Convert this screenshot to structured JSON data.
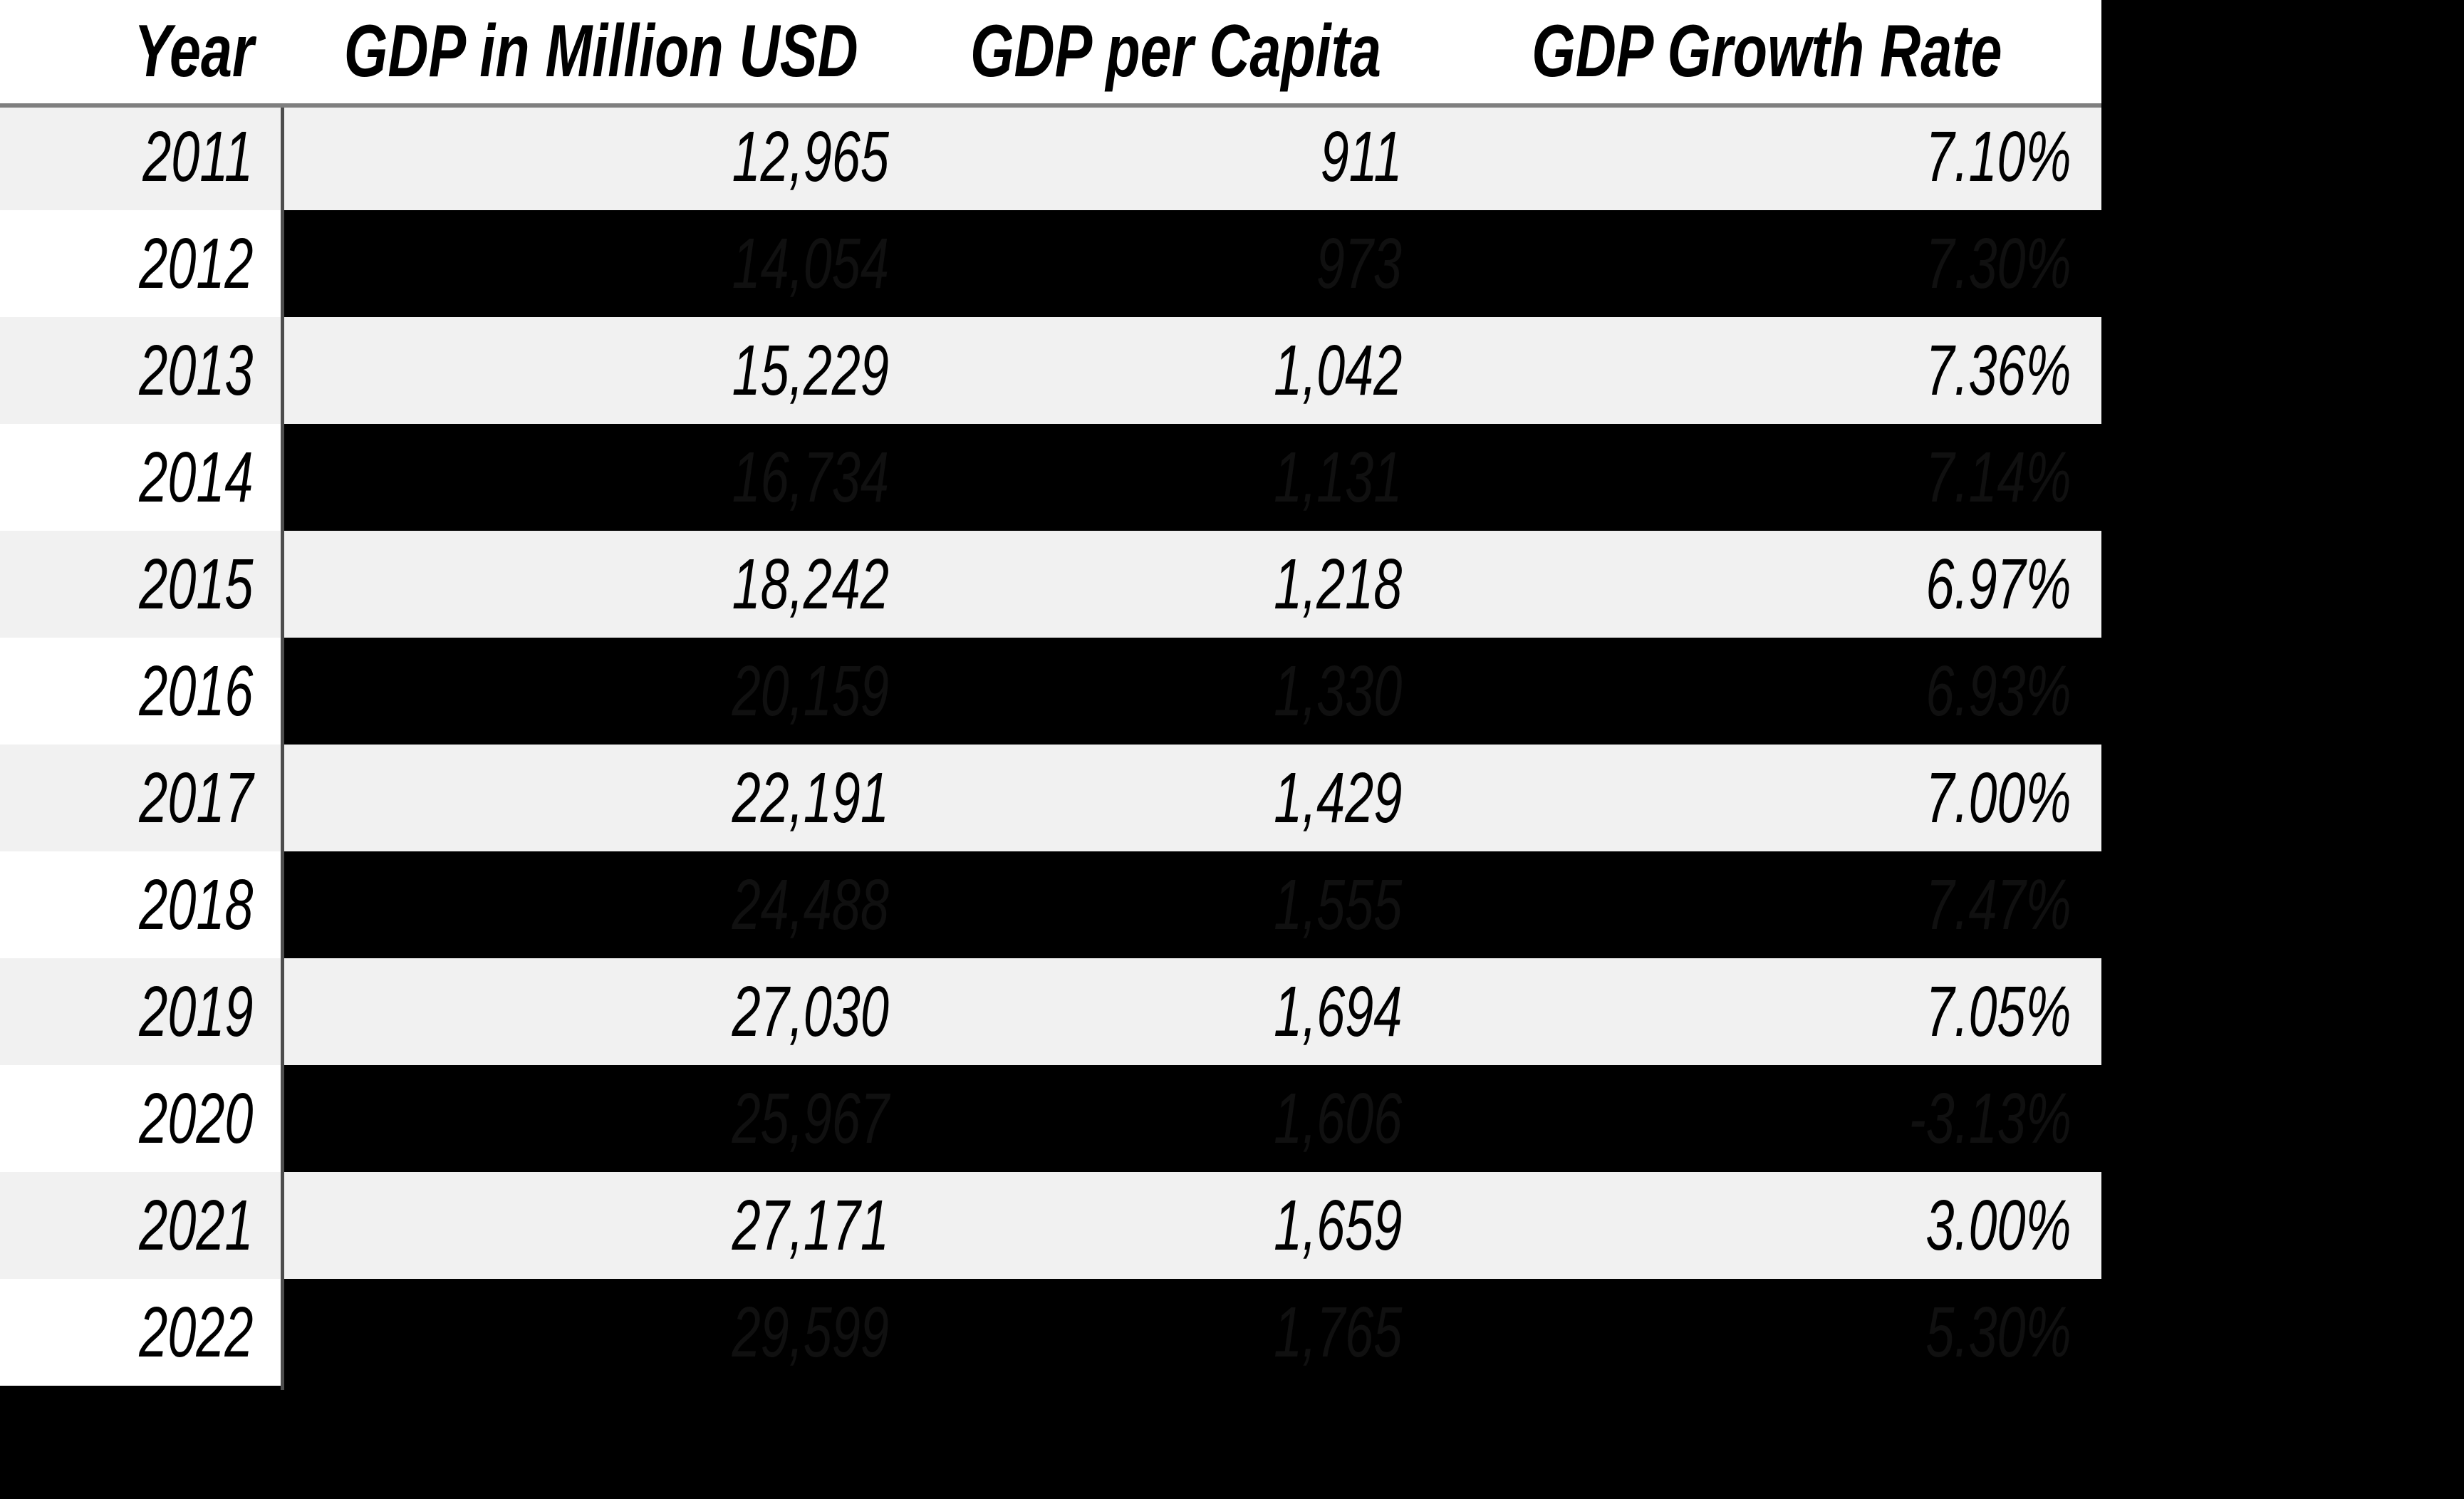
{
  "chart_data": {
    "type": "table",
    "columns": [
      "Year",
      "GDP in Million USD",
      "GDP per Capita",
      "GDP Growth Rate"
    ],
    "rows": [
      {
        "year": "2011",
        "gdp_million_usd": "12,965",
        "gdp_per_capita": "911",
        "gdp_growth_rate": "7.10%",
        "masked": false
      },
      {
        "year": "2012",
        "gdp_million_usd": "14,054",
        "gdp_per_capita": "973",
        "gdp_growth_rate": "7.30%",
        "masked": true
      },
      {
        "year": "2013",
        "gdp_million_usd": "15,229",
        "gdp_per_capita": "1,042",
        "gdp_growth_rate": "7.36%",
        "masked": false
      },
      {
        "year": "2014",
        "gdp_million_usd": "16,734",
        "gdp_per_capita": "1,131",
        "gdp_growth_rate": "7.14%",
        "masked": true
      },
      {
        "year": "2015",
        "gdp_million_usd": "18,242",
        "gdp_per_capita": "1,218",
        "gdp_growth_rate": "6.97%",
        "masked": false
      },
      {
        "year": "2016",
        "gdp_million_usd": "20,159",
        "gdp_per_capita": "1,330",
        "gdp_growth_rate": "6.93%",
        "masked": true
      },
      {
        "year": "2017",
        "gdp_million_usd": "22,191",
        "gdp_per_capita": "1,429",
        "gdp_growth_rate": "7.00%",
        "masked": false
      },
      {
        "year": "2018",
        "gdp_million_usd": "24,488",
        "gdp_per_capita": "1,555",
        "gdp_growth_rate": "7.47%",
        "masked": true
      },
      {
        "year": "2019",
        "gdp_million_usd": "27,030",
        "gdp_per_capita": "1,694",
        "gdp_growth_rate": "7.05%",
        "masked": false
      },
      {
        "year": "2020",
        "gdp_million_usd": "25,967",
        "gdp_per_capita": "1,606",
        "gdp_growth_rate": "-3.13%",
        "masked": true
      },
      {
        "year": "2021",
        "gdp_million_usd": "27,171",
        "gdp_per_capita": "1,659",
        "gdp_growth_rate": "3.00%",
        "masked": false
      },
      {
        "year": "2022",
        "gdp_million_usd": "29,599",
        "gdp_per_capita": "1,765",
        "gdp_growth_rate": "5.30%",
        "masked": true
      }
    ]
  },
  "colors": {
    "page_background": "#000000",
    "header_background": "#FFFFFF",
    "row_light_background": "#F1F1F1",
    "masked_row_background": "#000000",
    "masked_text": "#101010",
    "text": "#000000",
    "header_divider": "#7F7F7F",
    "year_column_divider": "#4D4D4D"
  }
}
